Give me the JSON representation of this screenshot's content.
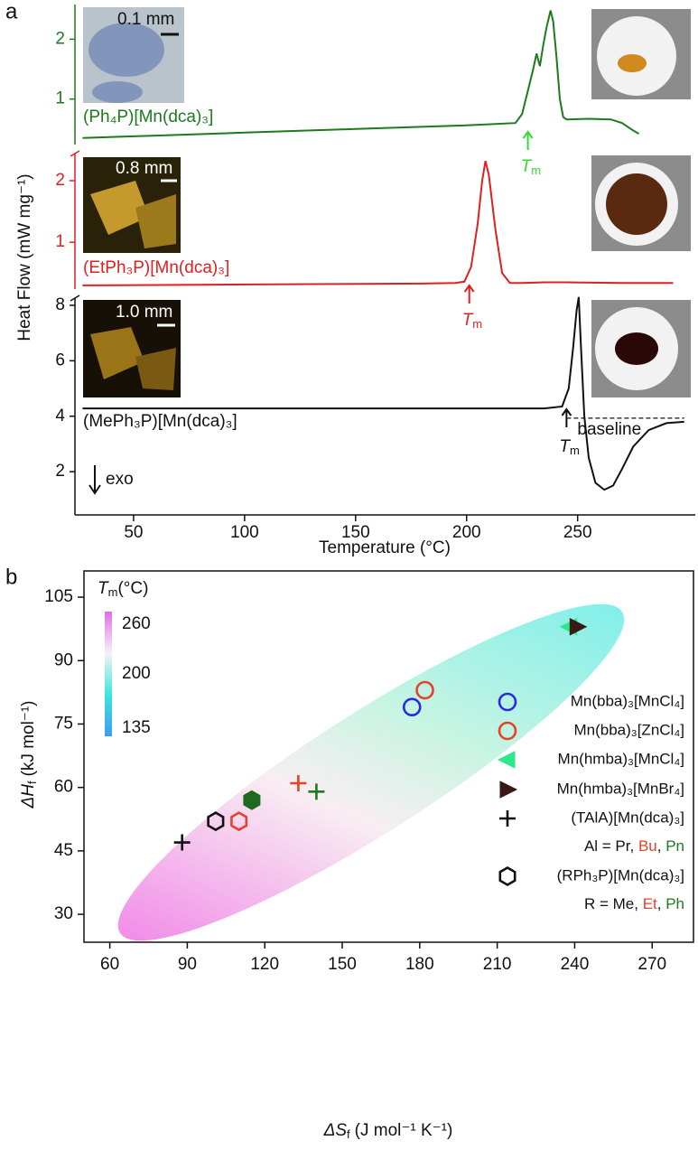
{
  "chart_data": [
    {
      "type": "line",
      "panel": "a",
      "xlabel": "Temperature (°C)",
      "ylabel": "Heat Flow (mW mg⁻¹)",
      "xlim": [
        23.6,
        303
      ],
      "xticks": [
        50,
        100,
        150,
        200,
        250
      ],
      "exo_label": "exo",
      "series": [
        {
          "name": "(Ph₄P)[Mn(dca)₃]",
          "color": "#1e7a1e",
          "scale_label": "0.1 mm",
          "ylim": [
            0.24,
            2.58
          ],
          "yticks": [
            1,
            2
          ],
          "x": [
            27,
            60,
            100,
            150,
            200,
            222,
            225,
            228,
            230,
            231.5,
            233,
            234.5,
            236,
            237.8,
            239,
            240.5,
            242,
            243.5,
            245,
            255,
            265,
            270,
            274,
            277.6
          ],
          "values": [
            0.35,
            0.39,
            0.44,
            0.5,
            0.56,
            0.6,
            0.75,
            1.2,
            1.5,
            1.76,
            1.55,
            1.9,
            2.2,
            2.48,
            2.3,
            1.7,
            1.0,
            0.7,
            0.66,
            0.67,
            0.66,
            0.6,
            0.5,
            0.42
          ],
          "tm": {
            "symbol": "T",
            "sub": "m",
            "x": 227.6,
            "color": "#33dd33"
          }
        },
        {
          "name": "(EtPh₃P)[Mn(dca)₃]",
          "color": "#e02020",
          "scale_label": "0.8 mm",
          "ylim": [
            0.24,
            2.44
          ],
          "yticks": [
            1,
            2
          ],
          "x": [
            27,
            80,
            130,
            180,
            195,
            199,
            202,
            205,
            207,
            208.5,
            210,
            213,
            216,
            219.5,
            225,
            235,
            245,
            270,
            293
          ],
          "values": [
            0.3,
            0.31,
            0.32,
            0.33,
            0.34,
            0.36,
            0.6,
            1.3,
            2.0,
            2.32,
            2.1,
            1.2,
            0.5,
            0.34,
            0.34,
            0.35,
            0.35,
            0.34,
            0.34
          ],
          "tm": {
            "symbol": "T",
            "sub": "m",
            "x": 201.2,
            "color": "#e02020"
          }
        },
        {
          "name": "(MePh₃P)[Mn(dca)₃]",
          "color": "#111111",
          "scale_label": "1.0 mm",
          "ylim": [
            0.44,
            8.26
          ],
          "yticks": [
            2,
            4,
            6,
            8
          ],
          "x": [
            27,
            80,
            150,
            200,
            235,
            243,
            246,
            248,
            249.5,
            250.5,
            251.5,
            253,
            255,
            258,
            262,
            266,
            270,
            275,
            282,
            290,
            298
          ],
          "values": [
            4.28,
            4.28,
            4.28,
            4.28,
            4.28,
            4.35,
            5.0,
            6.5,
            7.8,
            8.3,
            6.5,
            4.0,
            2.5,
            1.6,
            1.35,
            1.5,
            2.1,
            2.9,
            3.5,
            3.75,
            3.8
          ],
          "tm": {
            "symbol": "T",
            "sub": "m",
            "x": 245,
            "color": "#111111"
          },
          "baseline": {
            "label": "baseline",
            "x": [
              245,
              298
            ],
            "value": 3.93
          }
        }
      ]
    },
    {
      "type": "scatter",
      "panel": "b",
      "xlabel": {
        "symbol": "ΔS",
        "sub": "f",
        "unit": "(J mol⁻¹ K⁻¹)"
      },
      "ylabel": {
        "symbol": "ΔH",
        "sub": "f",
        "unit": "(kJ mol⁻¹)"
      },
      "xlim": [
        50,
        286
      ],
      "xticks": [
        60,
        90,
        120,
        150,
        180,
        210,
        240,
        270
      ],
      "ylim": [
        23.4,
        111.2
      ],
      "yticks": [
        30,
        45,
        60,
        75,
        90,
        105
      ],
      "colorbar": {
        "label": {
          "symbol": "T",
          "sub": "m",
          "unit": "(°C)"
        },
        "lim": [
          125,
          275
        ],
        "ticks": [
          135,
          200,
          260
        ],
        "colors": [
          "#3c9cf0",
          "#3ee6e0",
          "#f6f2f6",
          "#e070e8"
        ]
      },
      "series": [
        {
          "name": "Mn(bba)₃[MnCl₄]",
          "marker": "circle",
          "color": "#2a2ae0",
          "filled": false,
          "x": [
            177
          ],
          "values": [
            79
          ]
        },
        {
          "name": "Mn(bba)₃[ZnCl₄]",
          "marker": "circle",
          "color": "#e8402a",
          "filled": false,
          "x": [
            182
          ],
          "values": [
            83
          ]
        },
        {
          "name": "Mn(hmba)₃[MnCl₄]",
          "marker": "triangle-left",
          "color": "#2ee88a",
          "filled": true,
          "x": [
            238
          ],
          "values": [
            98
          ]
        },
        {
          "name": "Mn(hmba)₃[MnBr₄]",
          "marker": "triangle-right",
          "color": "#3a1a14",
          "filled": true,
          "x": [
            241
          ],
          "values": [
            98
          ]
        },
        {
          "name": "(TAlA)[Mn(dca)₃]",
          "marker": "plus",
          "color": "#111111",
          "filled": false,
          "point_colors": [
            "#111111",
            "#e8402a",
            "#1e7a1e"
          ],
          "x": [
            88,
            133,
            140
          ],
          "values": [
            47,
            61,
            59
          ],
          "note": [
            {
              "text": "Al = Pr",
              "color": "#111111"
            },
            {
              "text": ", ",
              "color": "#111111"
            },
            {
              "text": "Bu",
              "color": "#e8402a"
            },
            {
              "text": ", ",
              "color": "#111111"
            },
            {
              "text": "Pn",
              "color": "#1e7a1e"
            }
          ]
        },
        {
          "name": "(RPh₃P)[Mn(dca)₃]",
          "marker": "hexagon",
          "color": "#111111",
          "filled": false,
          "point_colors": [
            "#111111",
            "#e8402a",
            "#1e6a1e"
          ],
          "point_filled": [
            false,
            false,
            true
          ],
          "x": [
            101,
            110,
            115
          ],
          "values": [
            52,
            52,
            57
          ],
          "note": [
            {
              "text": "R = Me",
              "color": "#111111"
            },
            {
              "text": ", ",
              "color": "#111111"
            },
            {
              "text": "Et",
              "color": "#e8402a"
            },
            {
              "text": ", ",
              "color": "#111111"
            },
            {
              "text": "Ph",
              "color": "#1e7a1e"
            }
          ]
        }
      ]
    }
  ]
}
